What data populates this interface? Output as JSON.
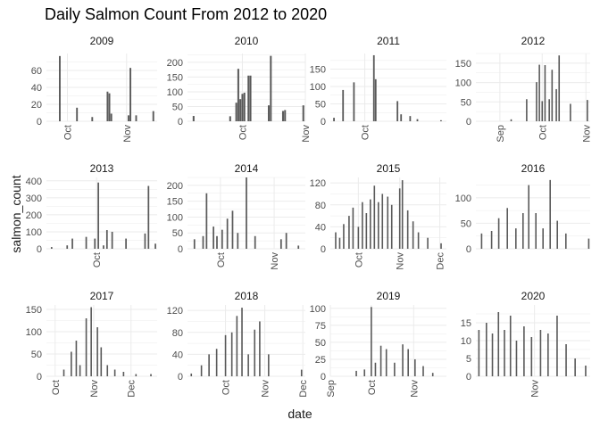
{
  "chart_data": {
    "type": "bar",
    "title": "Daily Salmon Count From 2012 to 2020",
    "xlabel": "date",
    "ylabel": "salmon_count",
    "grid": true,
    "bar_color": "#595959",
    "grid_color": "#ebebeb",
    "panels": [
      {
        "label": "2009",
        "ylim": [
          0,
          80
        ],
        "yticks": [
          0,
          20,
          40,
          60
        ],
        "xlim": [
          "2009-09-20",
          "2009-11-17"
        ],
        "xticks": [
          "Oct",
          "Nov"
        ],
        "xtick_dates": [
          "2009-10-01",
          "2009-11-01"
        ],
        "bars": [
          [
            "2009-09-27",
            77
          ],
          [
            "2009-10-06",
            16
          ],
          [
            "2009-10-14",
            5
          ],
          [
            "2009-10-22",
            35
          ],
          [
            "2009-10-23",
            33
          ],
          [
            "2009-10-24",
            9
          ],
          [
            "2009-11-02",
            7
          ],
          [
            "2009-11-03",
            63
          ],
          [
            "2009-11-06",
            7
          ],
          [
            "2009-11-15",
            12
          ]
        ]
      },
      {
        "label": "2010",
        "ylim": [
          0,
          230
        ],
        "yticks": [
          0,
          50,
          100,
          150,
          200
        ],
        "xlim": [
          "2010-09-04",
          "2010-11-01"
        ],
        "xticks": [
          "Oct",
          "Nov"
        ],
        "xtick_dates": [
          "2010-10-01",
          "2010-11-01"
        ],
        "bars": [
          [
            "2010-09-07",
            18
          ],
          [
            "2010-09-25",
            17
          ],
          [
            "2010-09-28",
            63
          ],
          [
            "2010-09-29",
            178
          ],
          [
            "2010-09-30",
            75
          ],
          [
            "2010-10-01",
            93
          ],
          [
            "2010-10-02",
            97
          ],
          [
            "2010-10-04",
            155
          ],
          [
            "2010-10-05",
            155
          ],
          [
            "2010-10-14",
            54
          ],
          [
            "2010-10-15",
            222
          ],
          [
            "2010-10-21",
            35
          ],
          [
            "2010-10-22",
            38
          ],
          [
            "2010-10-31",
            54
          ]
        ]
      },
      {
        "label": "2011",
        "ylim": [
          0,
          195
        ],
        "yticks": [
          0,
          50,
          100,
          150
        ],
        "xlim": [
          "2011-09-12",
          "2011-11-15"
        ],
        "xticks": [
          "Oct"
        ],
        "xtick_dates": [
          "2011-10-01"
        ],
        "bars": [
          [
            "2011-09-14",
            10
          ],
          [
            "2011-09-19",
            90
          ],
          [
            "2011-09-25",
            112
          ],
          [
            "2011-10-06",
            190
          ],
          [
            "2011-10-07",
            121
          ],
          [
            "2011-10-19",
            58
          ],
          [
            "2011-10-21",
            20
          ],
          [
            "2011-10-26",
            15
          ],
          [
            "2011-10-30",
            6
          ],
          [
            "2011-11-12",
            3
          ]
        ]
      },
      {
        "label": "2012",
        "ylim": [
          0,
          175
        ],
        "yticks": [
          0,
          50,
          100,
          150
        ],
        "xlim": [
          "2012-08-15",
          "2012-11-04"
        ],
        "xticks": [
          "Sep",
          "Oct",
          "Nov"
        ],
        "xtick_dates": [
          "2012-09-01",
          "2012-10-01",
          "2012-11-01"
        ],
        "bars": [
          [
            "2012-09-09",
            5
          ],
          [
            "2012-09-20",
            57
          ],
          [
            "2012-09-27",
            101
          ],
          [
            "2012-09-29",
            146
          ],
          [
            "2012-10-01",
            52
          ],
          [
            "2012-10-03",
            145
          ],
          [
            "2012-10-06",
            57
          ],
          [
            "2012-10-08",
            133
          ],
          [
            "2012-10-11",
            83
          ],
          [
            "2012-10-13",
            170
          ],
          [
            "2012-10-21",
            45
          ],
          [
            "2012-11-02",
            55
          ]
        ]
      },
      {
        "label": "2013",
        "ylim": [
          0,
          420
        ],
        "yticks": [
          0,
          100,
          200,
          300,
          400
        ],
        "xlim": [
          "2013-09-02",
          "2013-11-05"
        ],
        "xticks": [
          "Oct"
        ],
        "xtick_dates": [
          "2013-10-01"
        ],
        "bars": [
          [
            "2013-09-05",
            10
          ],
          [
            "2013-09-14",
            20
          ],
          [
            "2013-09-17",
            60
          ],
          [
            "2013-09-25",
            70
          ],
          [
            "2013-09-30",
            60
          ],
          [
            "2013-10-02",
            390
          ],
          [
            "2013-10-05",
            20
          ],
          [
            "2013-10-07",
            110
          ],
          [
            "2013-10-10",
            100
          ],
          [
            "2013-10-18",
            60
          ],
          [
            "2013-10-29",
            90
          ],
          [
            "2013-10-31",
            370
          ],
          [
            "2013-11-04",
            30
          ]
        ]
      },
      {
        "label": "2014",
        "ylim": [
          0,
          225
        ],
        "yticks": [
          0,
          50,
          100,
          150,
          200
        ],
        "xlim": [
          "2014-09-12",
          "2014-11-19"
        ],
        "xticks": [
          "Oct",
          "Nov"
        ],
        "xtick_dates": [
          "2014-10-01",
          "2014-11-01"
        ],
        "bars": [
          [
            "2014-09-16",
            30
          ],
          [
            "2014-09-21",
            40
          ],
          [
            "2014-09-23",
            175
          ],
          [
            "2014-09-27",
            70
          ],
          [
            "2014-09-29",
            40
          ],
          [
            "2014-10-02",
            60
          ],
          [
            "2014-10-05",
            95
          ],
          [
            "2014-10-08",
            120
          ],
          [
            "2014-10-11",
            50
          ],
          [
            "2014-10-16",
            225
          ],
          [
            "2014-10-21",
            40
          ],
          [
            "2014-11-05",
            30
          ],
          [
            "2014-11-08",
            50
          ],
          [
            "2014-11-15",
            10
          ]
        ]
      },
      {
        "label": "2015",
        "ylim": [
          0,
          130
        ],
        "yticks": [
          0,
          40,
          80,
          120
        ],
        "xlim": [
          "2015-09-10",
          "2015-12-06"
        ],
        "xticks": [
          "Oct",
          "Nov",
          "Dec"
        ],
        "xtick_dates": [
          "2015-10-01",
          "2015-11-01",
          "2015-12-01"
        ],
        "bars": [
          [
            "2015-09-14",
            30
          ],
          [
            "2015-09-17",
            20
          ],
          [
            "2015-09-20",
            45
          ],
          [
            "2015-09-24",
            60
          ],
          [
            "2015-09-27",
            75
          ],
          [
            "2015-10-01",
            40
          ],
          [
            "2015-10-04",
            85
          ],
          [
            "2015-10-07",
            65
          ],
          [
            "2015-10-10",
            90
          ],
          [
            "2015-10-13",
            115
          ],
          [
            "2015-10-16",
            85
          ],
          [
            "2015-10-19",
            100
          ],
          [
            "2015-10-23",
            95
          ],
          [
            "2015-10-26",
            80
          ],
          [
            "2015-11-01",
            110
          ],
          [
            "2015-11-03",
            125
          ],
          [
            "2015-11-07",
            70
          ],
          [
            "2015-11-11",
            50
          ],
          [
            "2015-11-15",
            30
          ],
          [
            "2015-11-22",
            20
          ],
          [
            "2015-12-02",
            10
          ]
        ]
      },
      {
        "label": "2016",
        "ylim": [
          0,
          140
        ],
        "yticks": [
          0,
          50,
          100
        ],
        "xlim": [
          "2016-09-01",
          "2016-11-20"
        ],
        "xticks": [],
        "xtick_dates": [],
        "bars": [
          [
            "2016-09-05",
            30
          ],
          [
            "2016-09-12",
            35
          ],
          [
            "2016-09-17",
            60
          ],
          [
            "2016-09-23",
            80
          ],
          [
            "2016-09-29",
            40
          ],
          [
            "2016-10-04",
            70
          ],
          [
            "2016-10-08",
            125
          ],
          [
            "2016-10-13",
            70
          ],
          [
            "2016-10-18",
            40
          ],
          [
            "2016-10-23",
            135
          ],
          [
            "2016-10-28",
            55
          ],
          [
            "2016-11-03",
            30
          ],
          [
            "2016-11-19",
            20
          ]
        ]
      },
      {
        "label": "2017",
        "ylim": [
          0,
          160
        ],
        "yticks": [
          0,
          50,
          100,
          150
        ],
        "xlim": [
          "2017-09-24",
          "2017-12-22"
        ],
        "xticks": [
          "Oct",
          "Nov",
          "Dec"
        ],
        "xtick_dates": [
          "2017-10-01",
          "2017-11-01",
          "2017-12-01"
        ],
        "bars": [
          [
            "2017-10-08",
            15
          ],
          [
            "2017-10-14",
            55
          ],
          [
            "2017-10-18",
            80
          ],
          [
            "2017-10-21",
            25
          ],
          [
            "2017-10-26",
            130
          ],
          [
            "2017-10-30",
            155
          ],
          [
            "2017-11-04",
            110
          ],
          [
            "2017-11-07",
            65
          ],
          [
            "2017-11-12",
            25
          ],
          [
            "2017-11-18",
            15
          ],
          [
            "2017-11-25",
            10
          ],
          [
            "2017-12-05",
            5
          ],
          [
            "2017-12-17",
            5
          ]
        ]
      },
      {
        "label": "2018",
        "ylim": [
          0,
          130
        ],
        "yticks": [
          0,
          40,
          80,
          120
        ],
        "xlim": [
          "2018-09-01",
          "2018-12-03"
        ],
        "xticks": [
          "Oct",
          "Nov",
          "Dec"
        ],
        "xtick_dates": [
          "2018-10-01",
          "2018-11-01",
          "2018-12-01"
        ],
        "bars": [
          [
            "2018-09-04",
            5
          ],
          [
            "2018-09-12",
            20
          ],
          [
            "2018-09-18",
            40
          ],
          [
            "2018-09-24",
            50
          ],
          [
            "2018-10-01",
            75
          ],
          [
            "2018-10-06",
            80
          ],
          [
            "2018-10-10",
            110
          ],
          [
            "2018-10-14",
            125
          ],
          [
            "2018-10-19",
            40
          ],
          [
            "2018-10-24",
            85
          ],
          [
            "2018-10-28",
            100
          ],
          [
            "2018-11-04",
            40
          ],
          [
            "2018-11-30",
            12
          ]
        ]
      },
      {
        "label": "2019",
        "ylim": [
          0,
          105
        ],
        "yticks": [
          0,
          25,
          50,
          75,
          100
        ],
        "xlim": [
          "2019-09-01",
          "2019-11-25"
        ],
        "xticks": [
          "Sep",
          "Oct",
          "Nov"
        ],
        "xtick_dates": [
          "2019-09-01",
          "2019-10-01",
          "2019-11-01"
        ],
        "bars": [
          [
            "2019-09-20",
            8
          ],
          [
            "2019-09-26",
            10
          ],
          [
            "2019-10-01",
            102
          ],
          [
            "2019-10-04",
            20
          ],
          [
            "2019-10-08",
            45
          ],
          [
            "2019-10-12",
            40
          ],
          [
            "2019-10-18",
            20
          ],
          [
            "2019-10-24",
            47
          ],
          [
            "2019-10-28",
            40
          ],
          [
            "2019-11-02",
            25
          ],
          [
            "2019-11-08",
            15
          ],
          [
            "2019-11-15",
            5
          ]
        ]
      },
      {
        "label": "2020",
        "ylim": [
          0,
          20
        ],
        "yticks": [
          0,
          5,
          10,
          15
        ],
        "xlim": [
          "2020-09-23",
          "2020-12-08"
        ],
        "xticks": [
          "Nov"
        ],
        "xtick_dates": [
          "2020-11-01"
        ],
        "bars": [
          [
            "2020-09-25",
            13
          ],
          [
            "2020-09-30",
            15
          ],
          [
            "2020-10-04",
            12
          ],
          [
            "2020-10-08",
            18
          ],
          [
            "2020-10-12",
            13
          ],
          [
            "2020-10-16",
            17
          ],
          [
            "2020-10-20",
            10
          ],
          [
            "2020-10-25",
            14
          ],
          [
            "2020-10-30",
            11
          ],
          [
            "2020-11-05",
            13
          ],
          [
            "2020-11-10",
            12
          ],
          [
            "2020-11-16",
            17
          ],
          [
            "2020-11-22",
            9
          ],
          [
            "2020-11-28",
            5
          ],
          [
            "2020-12-05",
            3
          ]
        ]
      }
    ]
  }
}
